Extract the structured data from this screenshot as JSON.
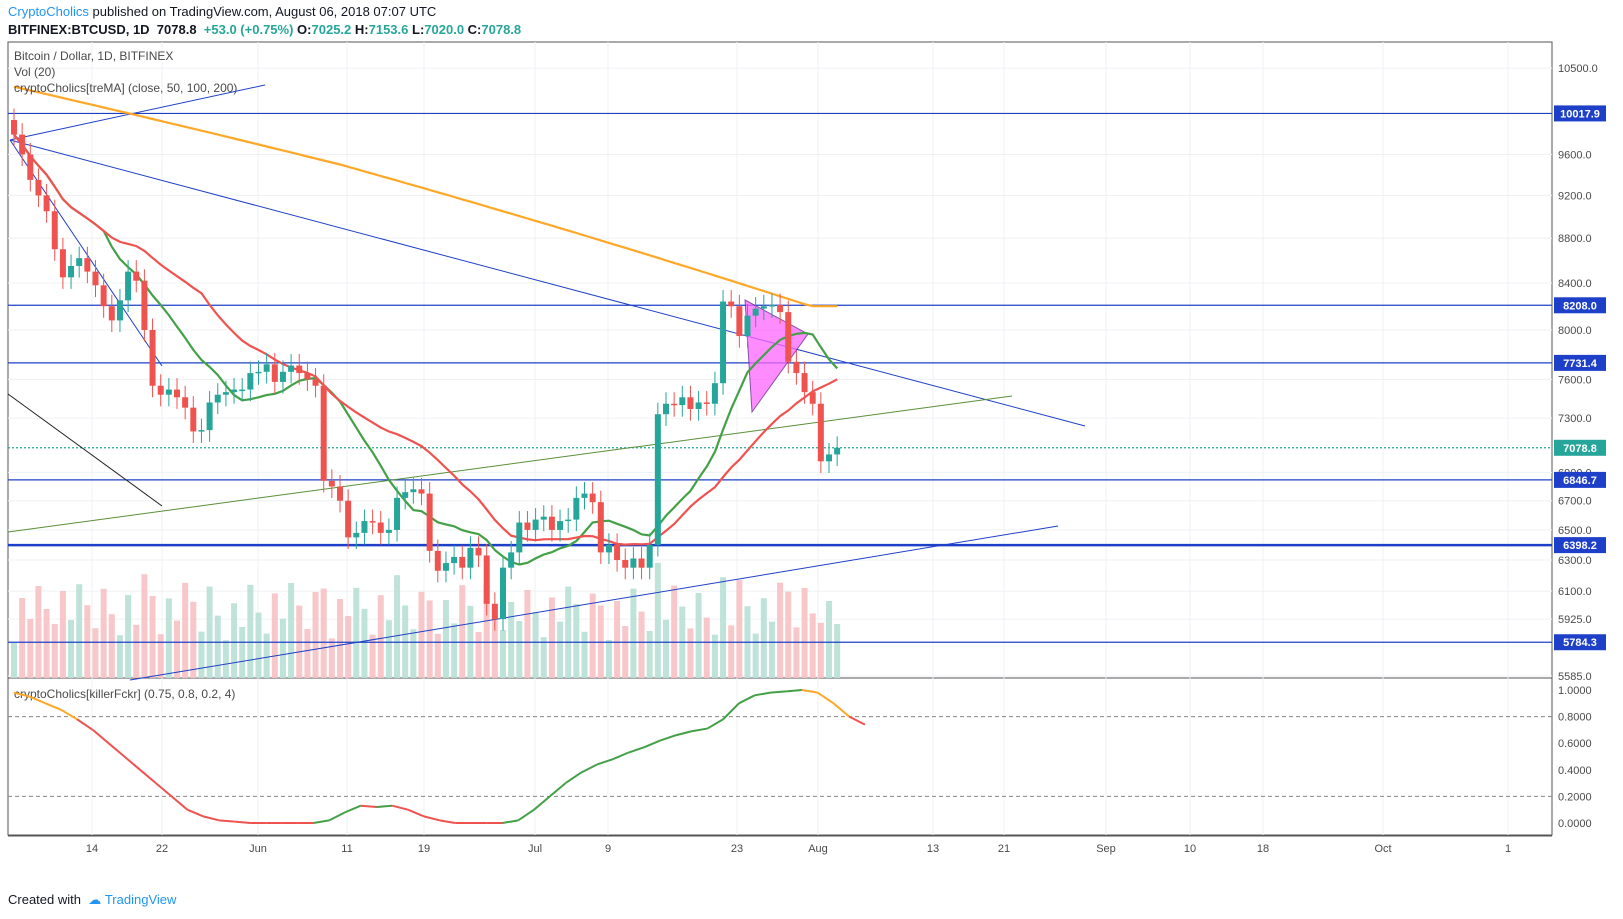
{
  "header": {
    "brand": "CryptoCholics",
    "published": " published on TradingView.com, August 06, 2018 07:07 UTC",
    "symbol": "BITFINEX:BTCUSD, 1D",
    "last": "7078.8",
    "change": "+53.0 (+0.75%)",
    "o_label": "O:",
    "o": "7025.2",
    "h_label": "H:",
    "h": "7153.6",
    "l_label": "L:",
    "l": "7020.0",
    "c_label": "C:",
    "c": "7078.8"
  },
  "legend": {
    "title": "Bitcoin / Dollar, 1D, BITFINEX",
    "vol": "Vol (20)",
    "ma": "cryptoCholics[treMA] (close, 50, 100, 200)",
    "osc": "cryptoCholics[killerFckr] (0.75, 0.8, 0.2, 4)"
  },
  "footer": {
    "created": "Created with",
    "brand": "TradingView"
  },
  "colors": {
    "up": "#26a69a",
    "down": "#ef5350",
    "ma_fast": "#43a047",
    "ma_mid": "#ef5350",
    "ma_slow": "#ffa726",
    "hline": "#1e40c8",
    "tag": "#1e40c8",
    "pennant": "#ff66ff"
  },
  "chart_data": [
    {
      "type": "candlestick",
      "title": "Bitcoin / Dollar, 1D, BITFINEX",
      "y_scale": "log",
      "ylim": [
        5585,
        10700
      ],
      "x_labels": [
        "14",
        "22",
        "Jun",
        "11",
        "19",
        "Jul",
        "9",
        "23",
        "Aug",
        "13",
        "21",
        "Sep",
        "10",
        "18",
        "Oct",
        "1"
      ],
      "y_ticks": [
        "10500.0",
        "9600.0",
        "9200.0",
        "8800.0",
        "8400.0",
        "8000.0",
        "7600.0",
        "7300.0",
        "6900.0",
        "6700.0",
        "6500.0",
        "6300.0",
        "6100.0",
        "5925.0",
        "5585.0"
      ],
      "price_tags": [
        "10017.9",
        "8208.0",
        "7731.4",
        "7078.8",
        "6846.7",
        "6398.2",
        "5784.3"
      ],
      "ohlc_close_approx": [
        9800,
        9600,
        9350,
        9200,
        9050,
        8700,
        8450,
        8550,
        8620,
        8500,
        8380,
        8200,
        8080,
        8250,
        8500,
        8420,
        8000,
        7550,
        7480,
        7520,
        7460,
        7380,
        7200,
        7210,
        7420,
        7480,
        7500,
        7520,
        7520,
        7650,
        7660,
        7720,
        7580,
        7660,
        7710,
        7650,
        7600,
        7550,
        6840,
        6800,
        6700,
        6450,
        6480,
        6560,
        6550,
        6480,
        6500,
        6720,
        6760,
        6780,
        6750,
        6360,
        6230,
        6280,
        6320,
        6250,
        6380,
        6330,
        6020,
        5925,
        6250,
        6350,
        6550,
        6500,
        6570,
        6590,
        6500,
        6560,
        6570,
        6720,
        6750,
        6690,
        6350,
        6400,
        6300,
        6250,
        6310,
        6250,
        6400,
        7330,
        7410,
        7400,
        7460,
        7370,
        7420,
        7410,
        7570,
        8240,
        8200,
        7950,
        8120,
        8180,
        8200,
        8210,
        8150,
        7740,
        7650,
        7500,
        7410,
        6980,
        7030,
        7078.8
      ]
    },
    {
      "type": "line",
      "title": "cryptoCholics[killerFckr] (0.75, 0.8, 0.2, 4)",
      "ylim": [
        0,
        1
      ],
      "y_ticks": [
        "1.0000",
        "0.8000",
        "0.6000",
        "0.4000",
        "0.2000",
        "0.0000"
      ],
      "levels": [
        0.8,
        0.2
      ],
      "values_approx": [
        0.98,
        0.95,
        0.9,
        0.85,
        0.78,
        0.7,
        0.6,
        0.5,
        0.4,
        0.3,
        0.2,
        0.1,
        0.05,
        0.02,
        0.01,
        0.0,
        0.0,
        0.0,
        0.0,
        0.0,
        0.02,
        0.08,
        0.13,
        0.12,
        0.13,
        0.1,
        0.05,
        0.02,
        0.0,
        0.0,
        0.0,
        0.0,
        0.02,
        0.1,
        0.2,
        0.3,
        0.38,
        0.44,
        0.48,
        0.53,
        0.57,
        0.62,
        0.66,
        0.69,
        0.71,
        0.78,
        0.9,
        0.96,
        0.98,
        0.99,
        1.0,
        0.98,
        0.9,
        0.8,
        0.74
      ]
    }
  ]
}
